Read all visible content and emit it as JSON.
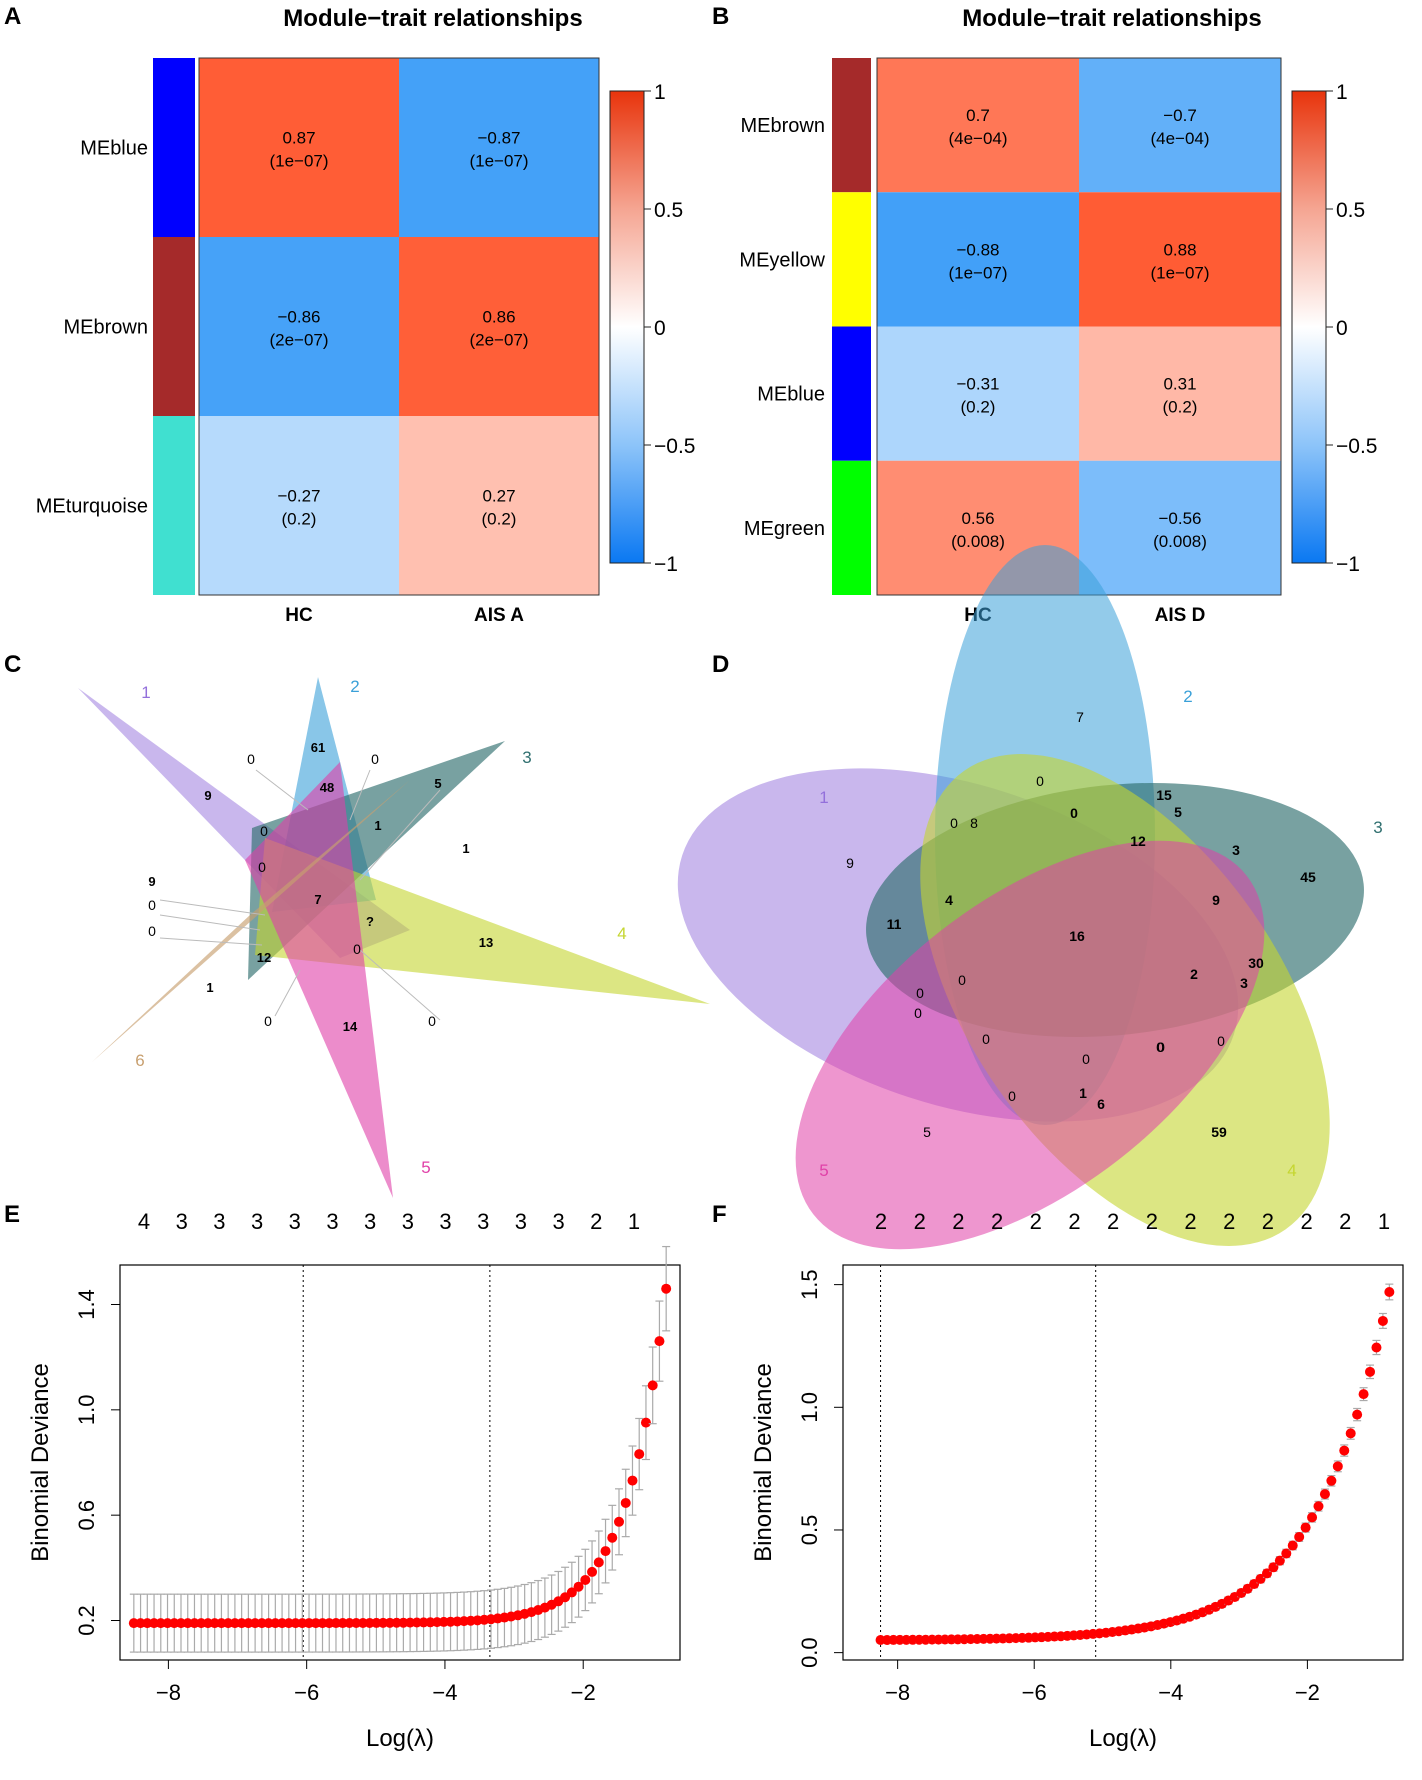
{
  "colors": {
    "pos_strong": "#FF4A1E",
    "neg_strong": "#2E96F7",
    "white": "#FFFFFF",
    "point": "#FF0000",
    "errbar": "#AAAAAA"
  },
  "chart_data": [
    {
      "panel": "A",
      "type": "heatmap",
      "title": "Module−trait relationships",
      "columns": [
        "HC",
        "AIS A"
      ],
      "rows": [
        {
          "label": "MEblue",
          "color": "#0000FF",
          "values": [
            0.87,
            -0.87
          ],
          "cells": [
            [
              "0.87",
              "(1e−07)"
            ],
            [
              "−0.87",
              "(1e−07)"
            ]
          ]
        },
        {
          "label": "MEbrown",
          "color": "#A52A2A",
          "values": [
            -0.86,
            0.86
          ],
          "cells": [
            [
              "−0.86",
              "(2e−07)"
            ],
            [
              "0.86",
              "(2e−07)"
            ]
          ]
        },
        {
          "label": "MEturquoise",
          "color": "#40E0D0",
          "values": [
            -0.27,
            0.27
          ],
          "cells": [
            [
              "−0.27",
              "(0.2)"
            ],
            [
              "0.27",
              "(0.2)"
            ]
          ]
        }
      ],
      "colorbar": {
        "range": [
          -1,
          1
        ],
        "ticks": [
          "1",
          "0.5",
          "0",
          "−0.5",
          "−1"
        ]
      }
    },
    {
      "panel": "B",
      "type": "heatmap",
      "title": "Module−trait relationships",
      "columns": [
        "HC",
        "AIS D"
      ],
      "rows": [
        {
          "label": "MEbrown",
          "color": "#A52A2A",
          "values": [
            0.7,
            -0.7
          ],
          "cells": [
            [
              "0.7",
              "(4e−04)"
            ],
            [
              "−0.7",
              "(4e−04)"
            ]
          ]
        },
        {
          "label": "MEyellow",
          "color": "#FFFF00",
          "values": [
            -0.88,
            0.88
          ],
          "cells": [
            [
              "−0.88",
              "(1e−07)"
            ],
            [
              "0.88",
              "(1e−07)"
            ]
          ]
        },
        {
          "label": "MEblue",
          "color": "#0000FF",
          "values": [
            -0.31,
            0.31
          ],
          "cells": [
            [
              "−0.31",
              "(0.2)"
            ],
            [
              "0.31",
              "(0.2)"
            ]
          ]
        },
        {
          "label": "MEgreen",
          "color": "#00FF00",
          "values": [
            0.56,
            -0.56
          ],
          "cells": [
            [
              "0.56",
              "(0.008)"
            ],
            [
              "−0.56",
              "(0.008)"
            ]
          ]
        }
      ],
      "colorbar": {
        "range": [
          -1,
          1
        ],
        "ticks": [
          "1",
          "0.5",
          "0",
          "−0.5",
          "−1"
        ]
      }
    },
    {
      "panel": "C",
      "type": "venn",
      "sets": [
        {
          "name": "1",
          "color": "#9370DB"
        },
        {
          "name": "2",
          "color": "#3AA0D8"
        },
        {
          "name": "3",
          "color": "#2F6F6F"
        },
        {
          "name": "4",
          "color": "#C5D630"
        },
        {
          "name": "5",
          "color": "#E040A8"
        },
        {
          "name": "6",
          "color": "#C8A070"
        }
      ],
      "counts": [
        "61",
        "48",
        "9",
        "5",
        "0",
        "0",
        "0",
        "1",
        "0",
        "1",
        "9",
        "0",
        "0",
        "7",
        "?",
        "13",
        "12",
        "0",
        "1",
        "0",
        "14",
        "0"
      ]
    },
    {
      "panel": "D",
      "type": "venn",
      "sets": [
        {
          "name": "1",
          "color": "#9370DB"
        },
        {
          "name": "2",
          "color": "#3AA0D8"
        },
        {
          "name": "3",
          "color": "#2F6F6F"
        },
        {
          "name": "4",
          "color": "#C5D630"
        },
        {
          "name": "5",
          "color": "#E040A8"
        }
      ],
      "counts": [
        "7",
        "0",
        "15",
        "5",
        "0",
        "8",
        "0",
        "12",
        "3",
        "45",
        "9",
        "4",
        "11",
        "16",
        "9",
        "2",
        "30",
        "3",
        "0",
        "0",
        "0",
        "0",
        "0",
        "0",
        "0",
        "1",
        "6",
        "0",
        "0",
        "5",
        "59"
      ]
    },
    {
      "panel": "E",
      "type": "scatter",
      "xlabel": "Log(λ)",
      "ylabel": "Binomial Deviance",
      "xlim": [
        -8.7,
        -0.6
      ],
      "ylim": [
        0.05,
        1.55
      ],
      "x_ticks": [
        -8,
        -6,
        -4,
        -2
      ],
      "x_tick_labels": [
        "−8",
        "−6",
        "−4",
        "−2"
      ],
      "y_ticks": [
        0.2,
        0.6,
        1.0,
        1.4
      ],
      "y_tick_labels": [
        "0.2",
        "0.6",
        "1.0",
        "1.4"
      ],
      "top_axis_labels": [
        "4",
        "3",
        "3",
        "3",
        "3",
        "3",
        "3",
        "3",
        "3",
        "3",
        "3",
        "3",
        "2",
        "1"
      ],
      "vlines": [
        -6.05,
        -3.35
      ],
      "curve": {
        "x_start": -8.5,
        "x_end": -0.8,
        "n": 80,
        "base": 0.19,
        "amp": 1.27,
        "rate": 1.75,
        "err_base": 0.11,
        "err_grow": 0.05
      }
    },
    {
      "panel": "F",
      "type": "scatter",
      "xlabel": "Log(λ)",
      "ylabel": "Binomial Deviance",
      "xlim": [
        -8.8,
        -0.6
      ],
      "ylim": [
        -0.03,
        1.58
      ],
      "x_ticks": [
        -8,
        -6,
        -4,
        -2
      ],
      "x_tick_labels": [
        "−8",
        "−6",
        "−4",
        "−2"
      ],
      "y_ticks": [
        0.0,
        0.5,
        1.0,
        1.5
      ],
      "y_tick_labels": [
        "0.0",
        "0.5",
        "1.0",
        "1.5"
      ],
      "top_axis_labels": [
        "2",
        "2",
        "2",
        "2",
        "2",
        "2",
        "2",
        "2",
        "2",
        "2",
        "2",
        "2",
        "2",
        "1"
      ],
      "vlines": [
        -8.25,
        -5.1
      ],
      "curve": {
        "x_start": -8.25,
        "x_end": -0.8,
        "n": 80,
        "base": 0.05,
        "amp": 1.42,
        "rate": 0.92,
        "err_base": 0.012,
        "err_grow": 0.02
      }
    }
  ],
  "panels": {
    "A": "A",
    "B": "B",
    "C": "C",
    "D": "D",
    "E": "E",
    "F": "F"
  }
}
